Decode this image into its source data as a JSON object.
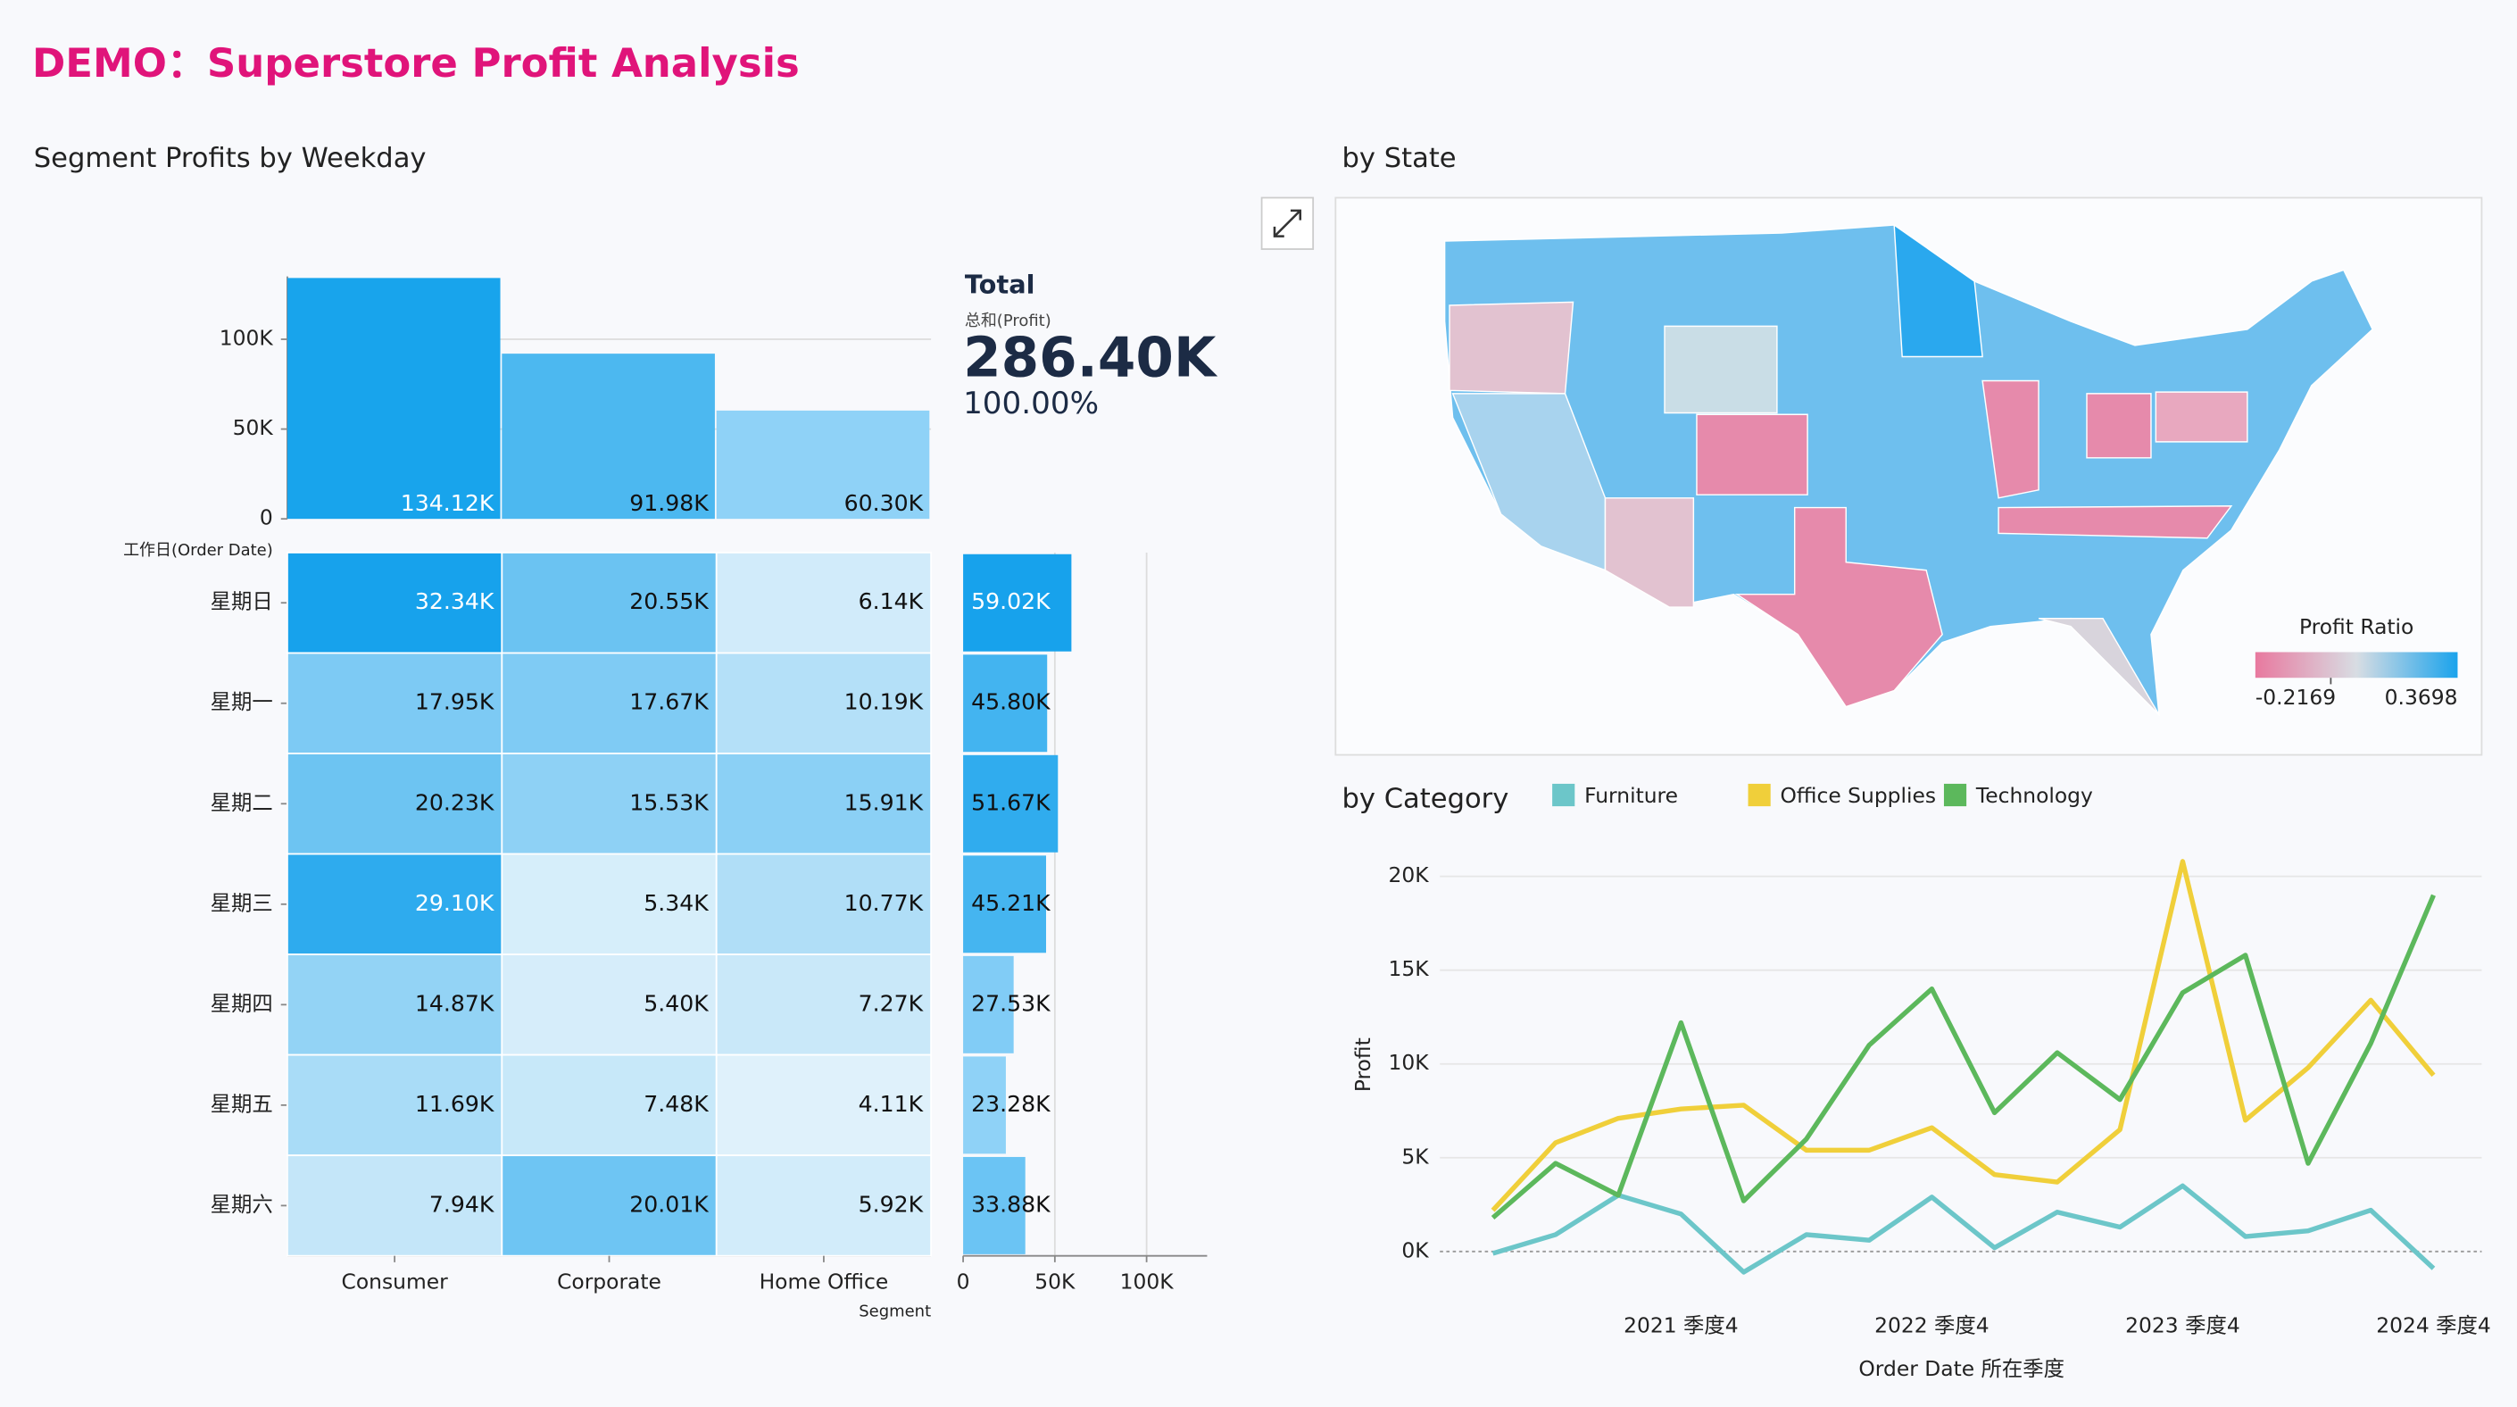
{
  "title": "DEMO：Superstore Profit Analysis",
  "chart_data": [
    {
      "type": "bar",
      "title": "Segment Profits by Weekday",
      "categories": [
        "Consumer",
        "Corporate",
        "Home Office"
      ],
      "values": [
        134120,
        91980,
        60300
      ],
      "value_labels": [
        "134.12K",
        "91.98K",
        "60.30K"
      ],
      "colors": [
        "#18a4ec",
        "#4cb8f0",
        "#8fd2f7"
      ],
      "ylim": [
        0,
        135000
      ],
      "yticks": [
        0,
        {
          "value": 50000,
          "label": "50K"
        },
        {
          "value": 100000,
          "label": "100K"
        }
      ],
      "grid": true
    },
    {
      "type": "heatmap",
      "x_label": "Segment",
      "y_label": "工作日(Order Date)",
      "categories": [
        "Consumer",
        "Corporate",
        "Home Office"
      ],
      "rows": [
        "星期日",
        "星期一",
        "星期二",
        "星期三",
        "星期四",
        "星期五",
        "星期六"
      ],
      "values": [
        [
          32340,
          20550,
          6140
        ],
        [
          17950,
          17670,
          10190
        ],
        [
          20230,
          15530,
          15910
        ],
        [
          29100,
          5340,
          10770
        ],
        [
          14870,
          5400,
          7270
        ],
        [
          11690,
          7480,
          4110
        ],
        [
          7940,
          20010,
          5920
        ]
      ],
      "value_labels": [
        [
          "32.34K",
          "20.55K",
          "6.14K"
        ],
        [
          "17.95K",
          "17.67K",
          "10.19K"
        ],
        [
          "20.23K",
          "15.53K",
          "15.91K"
        ],
        [
          "29.10K",
          "5.34K",
          "10.77K"
        ],
        [
          "14.87K",
          "5.40K",
          "7.27K"
        ],
        [
          "11.69K",
          "7.48K",
          "4.11K"
        ],
        [
          "7.94K",
          "20.01K",
          "5.92K"
        ]
      ],
      "color_range": [
        "#dff1fb",
        "#17a2ec"
      ]
    },
    {
      "type": "hbar",
      "values": [
        59020,
        45800,
        51670,
        45210,
        27530,
        23280,
        33880
      ],
      "value_labels": [
        "59.02K",
        "45.80K",
        "51.67K",
        "45.21K",
        "27.53K",
        "23.28K",
        "33.88K"
      ],
      "color_range": [
        "#8fd2f7",
        "#17a2ec"
      ],
      "xlim": [
        0,
        133000
      ],
      "xticks": [
        0,
        {
          "value": 50000,
          "label": "50K"
        },
        {
          "value": 100000,
          "label": "100K"
        }
      ],
      "grid": true
    },
    {
      "type": "kpi",
      "label": "Total",
      "measure": "总和(Profit)",
      "value": 286400,
      "value_label": "286.40K",
      "share": 100,
      "share_label": "100.00%"
    },
    {
      "type": "map",
      "title": "by State",
      "legend_title": "Profit Ratio",
      "color_range": [
        -0.2169,
        0.3698
      ],
      "colors": [
        "#e8799f",
        "#d8dde3",
        "#1aa3ec"
      ]
    },
    {
      "type": "line",
      "title": "by Category",
      "x_label": "Order Date 所在季度",
      "y_label": "Profit",
      "categories": [
        null,
        null,
        null,
        "2021 季度4",
        null,
        null,
        null,
        "2022 季度4",
        null,
        null,
        null,
        "2023 季度4",
        null,
        null,
        null,
        "2024 季度4"
      ],
      "series": [
        {
          "name": "Furniture",
          "color": "#6cc6c9",
          "values": [
            -100,
            900,
            3000,
            2000,
            -1100,
            900,
            600,
            2900,
            200,
            2100,
            1300,
            3500,
            800,
            1100,
            2200,
            -900
          ]
        },
        {
          "name": "Office Supplies",
          "color": "#f0cf3a",
          "values": [
            2200,
            5800,
            7100,
            7600,
            7800,
            5400,
            5400,
            6600,
            4100,
            3700,
            6500,
            20800,
            7000,
            9800,
            13400,
            9400
          ]
        },
        {
          "name": "Technology",
          "color": "#5cb85c",
          "values": [
            1800,
            4700,
            3000,
            12200,
            2700,
            6000,
            11000,
            14000,
            7400,
            10600,
            8100,
            13800,
            15800,
            4700,
            11100,
            19000
          ]
        }
      ],
      "ylim": [
        -2200,
        21000
      ],
      "yticks": [
        {
          "value": 0,
          "label": "0K"
        },
        {
          "value": 5000,
          "label": "5K"
        },
        {
          "value": 10000,
          "label": "10K"
        },
        {
          "value": 15000,
          "label": "15K"
        },
        {
          "value": 20000,
          "label": "20K"
        }
      ],
      "grid": true
    }
  ]
}
